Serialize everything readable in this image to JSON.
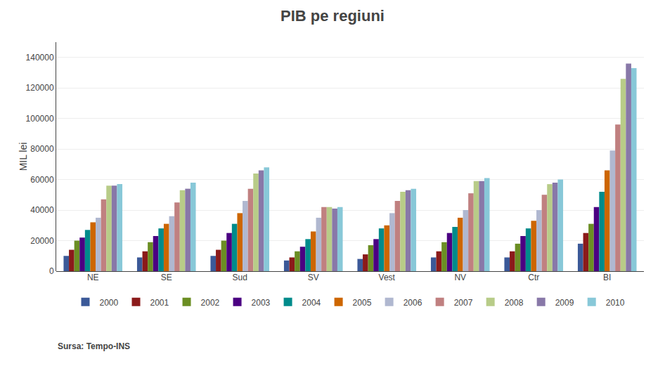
{
  "chart_data": {
    "type": "bar",
    "title": "PIB pe regiuni",
    "ylabel": "MIL lei",
    "annotations": [
      "Sursa: Tempo-INS"
    ],
    "categories": [
      "NE",
      "SE",
      "Sud",
      "SV",
      "Vest",
      "NV",
      "Ctr",
      "BI"
    ],
    "series": [
      {
        "name": "2000",
        "color": "#3B5998",
        "values": [
          10000,
          9000,
          10000,
          7000,
          8000,
          9000,
          9000,
          18000
        ]
      },
      {
        "name": "2001",
        "color": "#8B1A1A",
        "values": [
          14000,
          13000,
          14000,
          9000,
          11000,
          13000,
          13000,
          25000
        ]
      },
      {
        "name": "2002",
        "color": "#6B8E23",
        "values": [
          20000,
          19000,
          20000,
          13000,
          17000,
          19000,
          18000,
          31000
        ]
      },
      {
        "name": "2003",
        "color": "#4B0082",
        "values": [
          22000,
          23000,
          25000,
          16000,
          21000,
          25000,
          23000,
          42000
        ]
      },
      {
        "name": "2004",
        "color": "#008B8B",
        "values": [
          27000,
          28000,
          31000,
          21000,
          28000,
          29000,
          28000,
          52000
        ]
      },
      {
        "name": "2005",
        "color": "#CD6600",
        "values": [
          32000,
          31000,
          38000,
          26000,
          30000,
          35000,
          33000,
          66000
        ]
      },
      {
        "name": "2006",
        "color": "#B0B8D0",
        "values": [
          35000,
          36000,
          46000,
          35000,
          38000,
          40000,
          40000,
          79000
        ]
      },
      {
        "name": "2007",
        "color": "#C08080",
        "values": [
          47000,
          45000,
          54000,
          42000,
          46000,
          51000,
          50000,
          96000
        ]
      },
      {
        "name": "2008",
        "color": "#B8CC88",
        "values": [
          56000,
          53000,
          64000,
          42000,
          52000,
          59000,
          57000,
          126000
        ]
      },
      {
        "name": "2009",
        "color": "#8878A8",
        "values": [
          56000,
          54000,
          66000,
          41000,
          53000,
          59000,
          58000,
          136000
        ]
      },
      {
        "name": "2010",
        "color": "#88C8D8",
        "values": [
          57000,
          58000,
          68000,
          42000,
          54000,
          61000,
          60000,
          133000
        ]
      }
    ],
    "ylim": [
      0,
      150000
    ],
    "yticks": [
      0,
      20000,
      40000,
      60000,
      80000,
      100000,
      120000,
      140000
    ],
    "grid": true,
    "legend": "bottom"
  }
}
